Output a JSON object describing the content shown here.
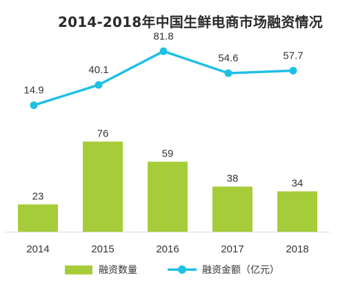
{
  "chart_data": {
    "type": "bar+line",
    "title": "2014-2018年中国生鲜电商市场融资情况",
    "categories": [
      "2014",
      "2015",
      "2016",
      "2017",
      "2018"
    ],
    "series": [
      {
        "name": "融资数量",
        "type": "bar",
        "color": "#a6cd39",
        "values": [
          23,
          76,
          59,
          38,
          34
        ]
      },
      {
        "name": "融资金额（亿元）",
        "type": "line",
        "color": "#1ec0e6",
        "values": [
          14.9,
          40.1,
          81.8,
          54.6,
          57.7
        ]
      }
    ],
    "legend": "bottom",
    "grid": false
  }
}
